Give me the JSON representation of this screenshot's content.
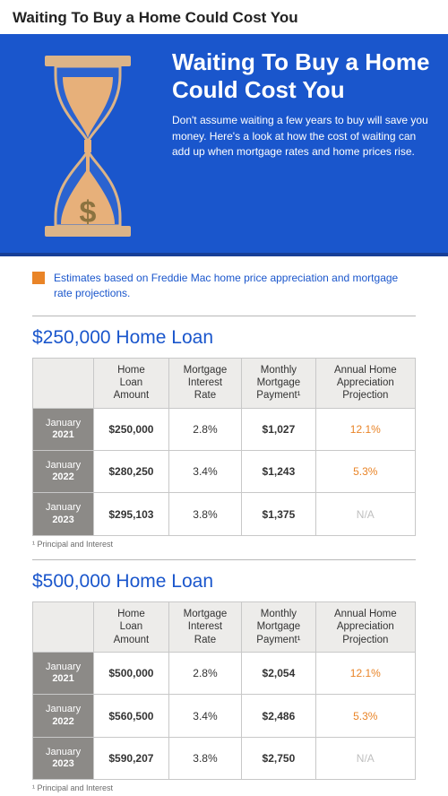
{
  "page_title": "Waiting To Buy a Home Could Cost You",
  "hero": {
    "headline": "Waiting To Buy a Home Could Cost You",
    "sub": "Don't assume waiting a few years to buy will save you money. Here's a look at how the cost of waiting can add up when mortgage rates and home prices rise.",
    "bg_color": "#1a56cc",
    "accent_rule_color": "#173f97",
    "hourglass": {
      "frame_color": "#dcb487",
      "sand_color": "#e7b07a",
      "dollar_sign": "$",
      "dollar_color": "#8c7340"
    }
  },
  "note": {
    "square_color": "#e98427",
    "text": "Estimates based on Freddie Mac home price appreciation and mortgage rate projections."
  },
  "columns": [
    "Home\nLoan\nAmount",
    "Mortgage\nInterest\nRate",
    "Monthly\nMortgage\nPayment¹",
    "Annual Home\nAppreciation\nProjection"
  ],
  "colors": {
    "heading": "#1a56cc",
    "rowlabel_bg": "#8c8a87",
    "proj": "#e98427",
    "na": "#bfbfbf",
    "border": "#c8c8c8",
    "th_bg": "#edecea"
  },
  "section_a": {
    "title": "$250,000 Home Loan",
    "rows": [
      {
        "label_month": "January",
        "label_year": "2021",
        "amount": "$250,000",
        "rate": "2.8%",
        "payment": "$1,027",
        "proj": "12.1%",
        "na": false
      },
      {
        "label_month": "January",
        "label_year": "2022",
        "amount": "$280,250",
        "rate": "3.4%",
        "payment": "$1,243",
        "proj": "5.3%",
        "na": false
      },
      {
        "label_month": "January",
        "label_year": "2023",
        "amount": "$295,103",
        "rate": "3.8%",
        "payment": "$1,375",
        "proj": "N/A",
        "na": true
      }
    ],
    "footnote": "¹ Principal and Interest"
  },
  "section_b": {
    "title": "$500,000 Home Loan",
    "rows": [
      {
        "label_month": "January",
        "label_year": "2021",
        "amount": "$500,000",
        "rate": "2.8%",
        "payment": "$2,054",
        "proj": "12.1%",
        "na": false
      },
      {
        "label_month": "January",
        "label_year": "2022",
        "amount": "$560,500",
        "rate": "3.4%",
        "payment": "$2,486",
        "proj": "5.3%",
        "na": false
      },
      {
        "label_month": "January",
        "label_year": "2023",
        "amount": "$590,207",
        "rate": "3.8%",
        "payment": "$2,750",
        "proj": "N/A",
        "na": true
      }
    ],
    "footnote": "¹ Principal and Interest"
  }
}
